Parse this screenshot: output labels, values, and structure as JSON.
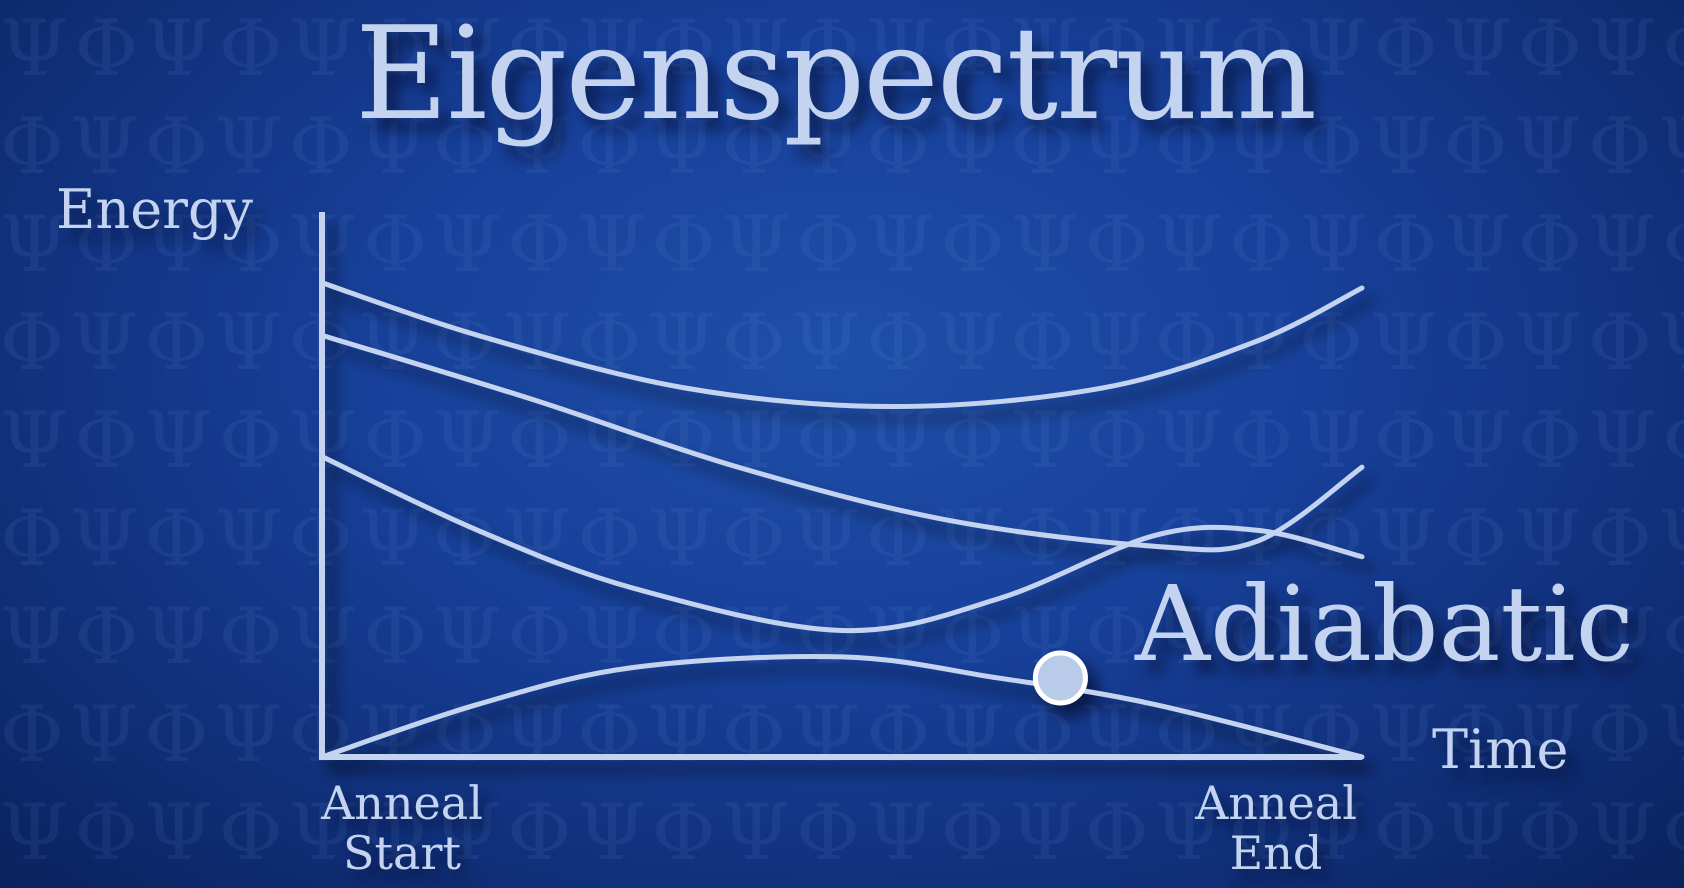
{
  "title": "Eigenspectrum",
  "annotation": "Adiabatic",
  "chart_data": {
    "type": "line",
    "ylabel": "Energy",
    "xlabel": "Time",
    "x_ticks": [
      {
        "line1": "Anneal",
        "line2": "Start"
      },
      {
        "line1": "Anneal",
        "line2": "End"
      }
    ],
    "xlim": [
      0,
      1
    ],
    "ylim": [
      0,
      1
    ],
    "series": [
      {
        "x": [
          0,
          0.15,
          0.35,
          0.55,
          0.75,
          0.9,
          1.0
        ],
        "y": [
          0.9,
          0.8,
          0.7,
          0.665,
          0.7,
          0.79,
          0.89
        ]
      },
      {
        "x": [
          0,
          0.2,
          0.4,
          0.6,
          0.8,
          0.9,
          1.0
        ],
        "y": [
          0.8,
          0.68,
          0.55,
          0.45,
          0.4,
          0.41,
          0.55
        ]
      },
      {
        "x": [
          0,
          0.15,
          0.3,
          0.5,
          0.65,
          0.8,
          0.9,
          1.0
        ],
        "y": [
          0.57,
          0.43,
          0.32,
          0.24,
          0.3,
          0.42,
          0.43,
          0.38
        ]
      },
      {
        "x": [
          0,
          0.15,
          0.3,
          0.5,
          0.65,
          0.8,
          1.0
        ],
        "y": [
          0.0,
          0.1,
          0.17,
          0.19,
          0.15,
          0.1,
          0.0
        ]
      }
    ],
    "marker": {
      "series": 3,
      "x": 0.71,
      "y": 0.15
    },
    "line_color": "#c4d4f0",
    "marker_fill": "#b8cbe8"
  }
}
